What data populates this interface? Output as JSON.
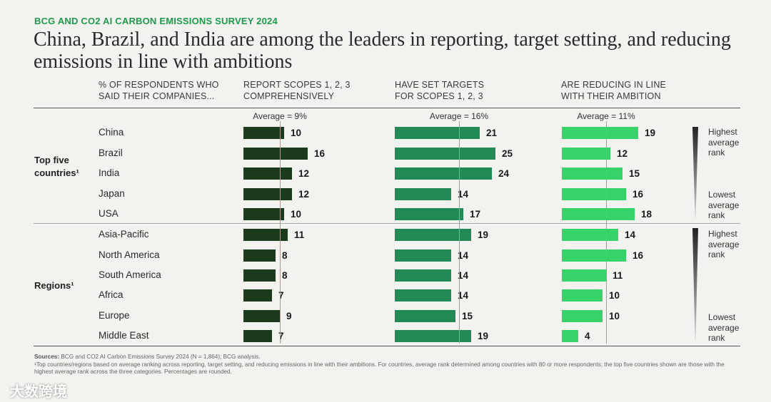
{
  "header": {
    "eyebrow": "BCG AND CO2 AI CARBON EMISSIONS SURVEY 2024",
    "title": "China, Brazil, and India are among the leaders in reporting, target setting, and reducing emissions in line with ambitions"
  },
  "chart_data": {
    "type": "bar",
    "orientation": "horizontal",
    "row_header": "% OF RESPONDENTS WHO SAID THEIR COMPANIES...",
    "groups": [
      {
        "label": "Top five countries¹",
        "categories": [
          "China",
          "Brazil",
          "India",
          "Japan",
          "USA"
        ],
        "rank_top": "Highest average rank",
        "rank_bottom": "Lowest average rank"
      },
      {
        "label": "Regions¹",
        "categories": [
          "Asia-Pacific",
          "North America",
          "South America",
          "Africa",
          "Europe",
          "Middle East"
        ],
        "rank_top": "Highest average rank",
        "rank_bottom": "Lowest average rank"
      }
    ],
    "series": [
      {
        "name": "REPORT SCOPES 1, 2, 3 COMPREHENSIVELY",
        "average": 9,
        "average_label": "Average = 9%",
        "color": "#1c3b1d",
        "values": [
          10,
          16,
          12,
          12,
          10,
          11,
          8,
          8,
          7,
          9,
          7
        ]
      },
      {
        "name": "HAVE SET TARGETS FOR SCOPES 1, 2, 3",
        "average": 16,
        "average_label": "Average = 16%",
        "color": "#218a55",
        "values": [
          21,
          25,
          24,
          14,
          17,
          19,
          14,
          14,
          14,
          15,
          19
        ]
      },
      {
        "name": "ARE REDUCING IN LINE WITH THEIR AMBITION",
        "average": 11,
        "average_label": "Average = 11%",
        "color": "#37d36a",
        "values": [
          19,
          12,
          15,
          16,
          18,
          14,
          16,
          11,
          10,
          10,
          4
        ]
      }
    ]
  },
  "footnote": {
    "sources_label": "Sources:",
    "sources_text": "BCG and CO2 AI Carbon Emissions Survey 2024 (N = 1,864); BCG analysis.",
    "note": "¹Top countries/regions based on average ranking across reporting, target setting, and reducing emissions in line with their ambitions. For countries, average rank determined among countries with 80 or more respondents; the top five countries shown are those with the highest average rank across the three categories. Percentages are rounded."
  },
  "watermark": "大数跨境"
}
